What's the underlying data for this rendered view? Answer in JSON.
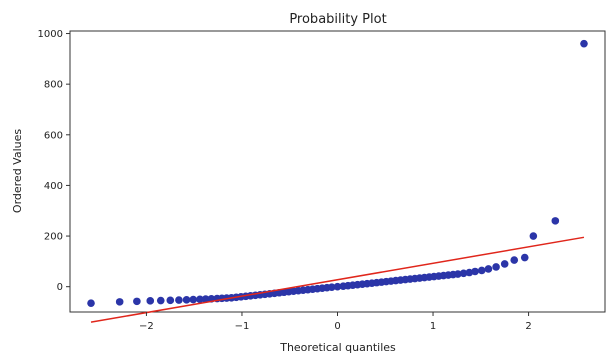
{
  "chart_data": {
    "type": "scatter",
    "title": "Probability Plot",
    "xlabel": "Theoretical quantiles",
    "ylabel": "Ordered Values",
    "xlim": [
      -2.8,
      2.8
    ],
    "ylim": [
      -100,
      1010
    ],
    "x_ticks": [
      -2,
      -1,
      0,
      1,
      2
    ],
    "y_ticks": [
      0,
      200,
      400,
      600,
      800,
      1000
    ],
    "grid": false,
    "marker_color": "#2b35a8",
    "line_color": "#e0261b",
    "series": [
      {
        "type": "scatter",
        "points": [
          [
            -2.58,
            -65
          ],
          [
            -2.28,
            -60
          ],
          [
            -2.1,
            -58
          ],
          [
            -1.96,
            -56
          ],
          [
            -1.85,
            -55
          ],
          [
            -1.75,
            -54
          ],
          [
            -1.66,
            -53
          ],
          [
            -1.58,
            -52
          ],
          [
            -1.51,
            -51
          ],
          [
            -1.44,
            -50
          ],
          [
            -1.38,
            -49
          ],
          [
            -1.32,
            -48
          ],
          [
            -1.26,
            -47
          ],
          [
            -1.21,
            -46
          ],
          [
            -1.16,
            -45
          ],
          [
            -1.11,
            -44
          ],
          [
            -1.06,
            -42
          ],
          [
            -1.01,
            -40
          ],
          [
            -0.96,
            -38
          ],
          [
            -0.91,
            -36
          ],
          [
            -0.86,
            -34
          ],
          [
            -0.81,
            -32
          ],
          [
            -0.76,
            -30
          ],
          [
            -0.71,
            -28
          ],
          [
            -0.66,
            -26
          ],
          [
            -0.61,
            -24
          ],
          [
            -0.56,
            -22
          ],
          [
            -0.51,
            -20
          ],
          [
            -0.46,
            -18
          ],
          [
            -0.41,
            -16
          ],
          [
            -0.36,
            -14
          ],
          [
            -0.31,
            -12
          ],
          [
            -0.26,
            -10
          ],
          [
            -0.21,
            -8
          ],
          [
            -0.16,
            -6
          ],
          [
            -0.11,
            -4
          ],
          [
            -0.06,
            -2
          ],
          [
            0.0,
            0
          ],
          [
            0.06,
            2
          ],
          [
            0.11,
            4
          ],
          [
            0.16,
            6
          ],
          [
            0.21,
            8
          ],
          [
            0.26,
            10
          ],
          [
            0.31,
            12
          ],
          [
            0.36,
            14
          ],
          [
            0.41,
            16
          ],
          [
            0.46,
            18
          ],
          [
            0.51,
            20
          ],
          [
            0.56,
            22
          ],
          [
            0.61,
            24
          ],
          [
            0.66,
            26
          ],
          [
            0.71,
            28
          ],
          [
            0.76,
            30
          ],
          [
            0.81,
            32
          ],
          [
            0.86,
            34
          ],
          [
            0.91,
            36
          ],
          [
            0.96,
            38
          ],
          [
            1.01,
            40
          ],
          [
            1.06,
            42
          ],
          [
            1.11,
            44
          ],
          [
            1.16,
            46
          ],
          [
            1.21,
            48
          ],
          [
            1.26,
            50
          ],
          [
            1.32,
            53
          ],
          [
            1.38,
            56
          ],
          [
            1.44,
            60
          ],
          [
            1.51,
            64
          ],
          [
            1.58,
            70
          ],
          [
            1.66,
            78
          ],
          [
            1.75,
            90
          ],
          [
            1.85,
            105
          ],
          [
            1.96,
            115
          ],
          [
            2.05,
            200
          ],
          [
            2.28,
            260
          ],
          [
            2.58,
            960
          ]
        ]
      },
      {
        "type": "line",
        "points": [
          [
            -2.58,
            -140
          ],
          [
            2.58,
            195
          ]
        ]
      }
    ]
  }
}
